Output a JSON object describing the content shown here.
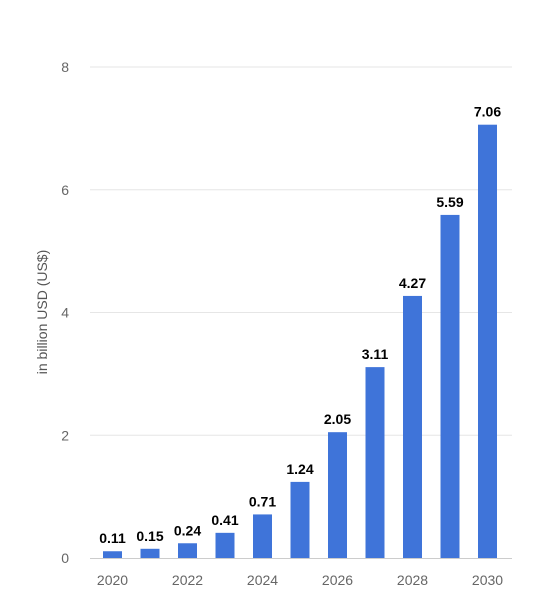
{
  "chart_data": {
    "type": "bar",
    "categories": [
      "2020",
      "2021",
      "2022",
      "2023",
      "2024",
      "2025",
      "2026",
      "2027",
      "2028",
      "2029",
      "2030"
    ],
    "values": [
      0.11,
      0.15,
      0.24,
      0.41,
      0.71,
      1.24,
      2.05,
      3.11,
      4.27,
      5.59,
      7.06
    ],
    "data_labels": [
      "0.11",
      "0.15",
      "0.24",
      "0.41",
      "0.71",
      "1.24",
      "2.05",
      "3.11",
      "4.27",
      "5.59",
      "7.06"
    ],
    "x_tick_labels": [
      "2020",
      "2022",
      "2024",
      "2026",
      "2028",
      "2030"
    ],
    "y_ticks": [
      0,
      2,
      4,
      6,
      8
    ],
    "y_tick_labels": [
      "0",
      "2",
      "4",
      "6",
      "8"
    ],
    "ylim": [
      0,
      8
    ],
    "ylabel": "in billion USD (US$)",
    "xlabel": "",
    "title": "",
    "grid": true,
    "legend": "none",
    "bar_color": "#3f74d9",
    "grid_color": "#e6e6e6"
  }
}
